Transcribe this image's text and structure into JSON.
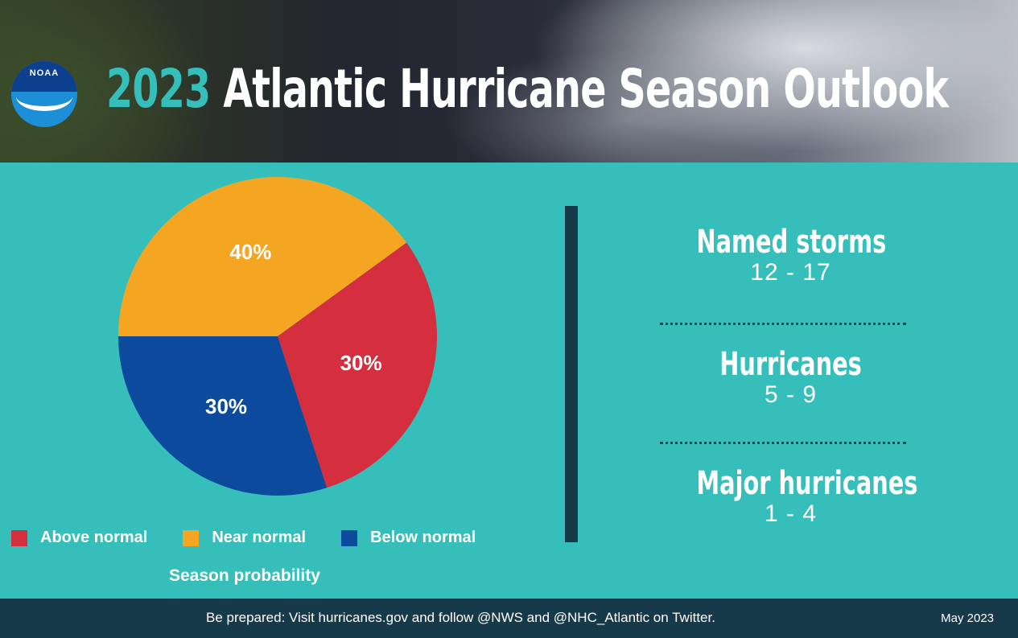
{
  "header": {
    "year": "2023",
    "title": "Atlantic Hurricane Season Outlook",
    "logo_text": "NOAA"
  },
  "chart_data": {
    "type": "pie",
    "title": "Season probability",
    "slices": [
      {
        "label": "Near normal",
        "value": 40,
        "display": "40%",
        "color": "#f4a623"
      },
      {
        "label": "Above normal",
        "value": 30,
        "display": "30%",
        "color": "#d42e3f"
      },
      {
        "label": "Below normal",
        "value": 30,
        "display": "30%",
        "color": "#0b4a9c"
      }
    ],
    "legend": [
      {
        "label": "Above normal",
        "color": "#d42e3f"
      },
      {
        "label": "Near normal",
        "color": "#f4a623"
      },
      {
        "label": "Below normal",
        "color": "#0b4a9c"
      }
    ],
    "legend_position": "bottom"
  },
  "stats": [
    {
      "label": "Named storms",
      "value": "12 - 17"
    },
    {
      "label": "Hurricanes",
      "value": "5 - 9"
    },
    {
      "label": "Major hurricanes",
      "value": "1 - 4"
    }
  ],
  "footer": {
    "message": "Be prepared: Visit hurricanes.gov and follow @NWS and @NHC_Atlantic on Twitter.",
    "date": "May 2023"
  },
  "colors": {
    "background": "#36bfba",
    "dark": "#173a4a"
  }
}
